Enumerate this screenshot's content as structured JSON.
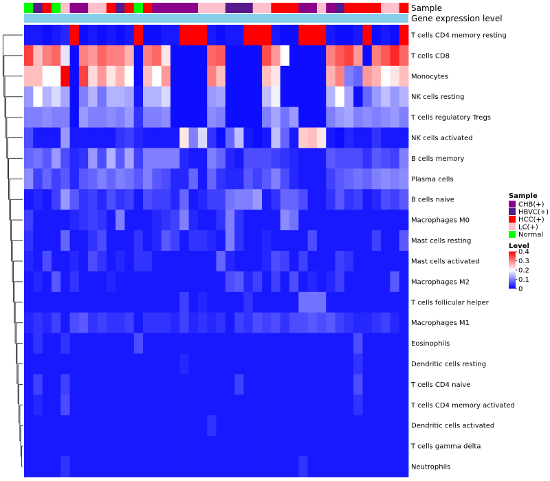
{
  "chart_data": {
    "type": "heatmap",
    "title": "",
    "annotation_rows": [
      "Sample",
      "Gene expression level"
    ],
    "sample_colors": {
      "CHB(+)": "#8b008b",
      "HBVC(+)": "#551a8b",
      "HCC(+)": "#ff0000",
      "LC(+)": "#ffc0cb",
      "Normal": "#00ff00"
    },
    "gene_level_color": "#87ceeb",
    "sample_groups": [
      "Normal",
      "HBVC(+)",
      "HCC(+)",
      "Normal",
      "LC(+)",
      "CHB(+)",
      "CHB(+)",
      "LC(+)",
      "LC(+)",
      "HCC(+)",
      "HBVC(+)",
      "HCC(+)",
      "Normal",
      "HCC(+)",
      "CHB(+)",
      "CHB(+)",
      "CHB(+)",
      "CHB(+)",
      "CHB(+)",
      "LC(+)",
      "LC(+)",
      "LC(+)",
      "HBVC(+)",
      "HBVC(+)",
      "HBVC(+)",
      "LC(+)",
      "LC(+)",
      "HCC(+)",
      "HCC(+)",
      "HCC(+)",
      "CHB(+)",
      "CHB(+)",
      "LC(+)",
      "CHB(+)",
      "HBVC(+)",
      "HCC(+)",
      "HCC(+)",
      "HCC(+)",
      "HCC(+)",
      "LC(+)",
      "LC(+)",
      "HCC(+)"
    ],
    "rows": [
      "T cells CD4 memory resting",
      "T cells CD8",
      "Monocytes",
      "NK cells resting",
      "T cells regulatory  Tregs",
      "NK cells activated",
      "B cells memory",
      "Plasma cells",
      "B cells naive",
      "Macrophages M0",
      "Mast cells resting",
      "Mast cells activated",
      "Macrophages M2",
      "T cells follicular helper",
      "Macrophages M1",
      "Eosinophils",
      "Dendritic cells resting",
      "T cells CD4 naive",
      "T cells CD4 memory activated",
      "Dendritic cells activated",
      "T cells gamma delta",
      "Neutrophils"
    ],
    "values": [
      [
        0.02,
        0.02,
        0.01,
        0.02,
        0.03,
        0.4,
        0.01,
        0.02,
        0.01,
        0.02,
        0.01,
        0.02,
        0.4,
        0.01,
        0.01,
        0.02,
        0.02,
        0.4,
        0.4,
        0.4,
        0.02,
        0.01,
        0.02,
        0.02,
        0.4,
        0.4,
        0.4,
        0.02,
        0.01,
        0.01,
        0.4,
        0.4,
        0.4,
        0.02,
        0.01,
        0.01,
        0.02,
        0.4,
        0.01,
        0.02,
        0.01,
        0.4
      ],
      [
        0.35,
        0.25,
        0.3,
        0.32,
        0.18,
        0.01,
        0.3,
        0.28,
        0.32,
        0.3,
        0.3,
        0.26,
        0.01,
        0.3,
        0.32,
        0.22,
        0.01,
        0.01,
        0.01,
        0.01,
        0.32,
        0.33,
        0.01,
        0.01,
        0.01,
        0.01,
        0.34,
        0.28,
        0.2,
        0.01,
        0.01,
        0.01,
        0.01,
        0.3,
        0.33,
        0.35,
        0.28,
        0.01,
        0.3,
        0.33,
        0.37,
        0.32
      ],
      [
        0.25,
        0.25,
        0.2,
        0.2,
        0.4,
        0.01,
        0.35,
        0.23,
        0.28,
        0.22,
        0.26,
        0.2,
        0.01,
        0.25,
        0.2,
        0.28,
        0.01,
        0.01,
        0.01,
        0.01,
        0.3,
        0.25,
        0.01,
        0.01,
        0.01,
        0.01,
        0.25,
        0.22,
        0.01,
        0.01,
        0.01,
        0.01,
        0.01,
        0.26,
        0.3,
        0.1,
        0.08,
        0.28,
        0.26,
        0.2,
        0.22,
        0.25
      ],
      [
        0.12,
        0.2,
        0.14,
        0.17,
        0.13,
        0.01,
        0.1,
        0.14,
        0.09,
        0.14,
        0.14,
        0.13,
        0.02,
        0.14,
        0.14,
        0.17,
        0.01,
        0.01,
        0.01,
        0.01,
        0.12,
        0.13,
        0.01,
        0.01,
        0.01,
        0.01,
        0.15,
        0.19,
        0.01,
        0.01,
        0.01,
        0.01,
        0.01,
        0.14,
        0.2,
        0.13,
        0.01,
        0.08,
        0.12,
        0.15,
        0.12,
        0.14
      ],
      [
        0.1,
        0.1,
        0.11,
        0.1,
        0.1,
        0.01,
        0.12,
        0.1,
        0.1,
        0.11,
        0.1,
        0.12,
        0.04,
        0.1,
        0.1,
        0.11,
        0.01,
        0.01,
        0.01,
        0.01,
        0.11,
        0.1,
        0.01,
        0.01,
        0.01,
        0.01,
        0.1,
        0.13,
        0.09,
        0.12,
        0.01,
        0.01,
        0.01,
        0.1,
        0.12,
        0.13,
        0.1,
        0.11,
        0.1,
        0.11,
        0.12,
        0.1
      ],
      [
        0.06,
        0.02,
        0.02,
        0.02,
        0.12,
        0.02,
        0.02,
        0.02,
        0.02,
        0.02,
        0.04,
        0.05,
        0.03,
        0.02,
        0.02,
        0.02,
        0.02,
        0.22,
        0.1,
        0.17,
        0.04,
        0.01,
        0.08,
        0.15,
        0.02,
        0.01,
        0.02,
        0.15,
        0.08,
        0.02,
        0.24,
        0.25,
        0.22,
        0.02,
        0.01,
        0.03,
        0.02,
        0.02,
        0.04,
        0.02,
        0.02,
        0.02
      ],
      [
        0.08,
        0.09,
        0.07,
        0.12,
        0.06,
        0.03,
        0.04,
        0.12,
        0.06,
        0.14,
        0.07,
        0.13,
        0.05,
        0.1,
        0.1,
        0.1,
        0.1,
        0.03,
        0.02,
        0.02,
        0.1,
        0.08,
        0.03,
        0.02,
        0.06,
        0.06,
        0.06,
        0.05,
        0.04,
        0.03,
        0.02,
        0.02,
        0.02,
        0.07,
        0.06,
        0.06,
        0.06,
        0.04,
        0.07,
        0.06,
        0.05,
        0.1
      ],
      [
        0.11,
        0.05,
        0.08,
        0.05,
        0.07,
        0.03,
        0.07,
        0.08,
        0.1,
        0.08,
        0.1,
        0.09,
        0.07,
        0.1,
        0.07,
        0.06,
        0.03,
        0.03,
        0.08,
        0.02,
        0.08,
        0.04,
        0.03,
        0.03,
        0.07,
        0.05,
        0.07,
        0.1,
        0.06,
        0.03,
        0.02,
        0.02,
        0.02,
        0.05,
        0.07,
        0.08,
        0.09,
        0.08,
        0.1,
        0.11,
        0.1,
        0.11
      ],
      [
        0.02,
        0.03,
        0.02,
        0.05,
        0.12,
        0.07,
        0.04,
        0.05,
        0.03,
        0.06,
        0.04,
        0.05,
        0.02,
        0.06,
        0.05,
        0.05,
        0.03,
        0.08,
        0.02,
        0.03,
        0.05,
        0.05,
        0.09,
        0.1,
        0.1,
        0.12,
        0.02,
        0.04,
        0.08,
        0.08,
        0.06,
        0.02,
        0.02,
        0.04,
        0.07,
        0.04,
        0.05,
        0.02,
        0.03,
        0.06,
        0.05,
        0.07
      ],
      [
        0.05,
        0.02,
        0.02,
        0.02,
        0.02,
        0.03,
        0.04,
        0.05,
        0.04,
        0.02,
        0.1,
        0.02,
        0.02,
        0.02,
        0.03,
        0.04,
        0.05,
        0.1,
        0.03,
        0.02,
        0.02,
        0.04,
        0.1,
        0.04,
        0.02,
        0.02,
        0.02,
        0.02,
        0.11,
        0.09,
        0.02,
        0.02,
        0.02,
        0.02,
        0.02,
        0.02,
        0.02,
        0.02,
        0.02,
        0.02,
        0.02,
        0.02
      ],
      [
        0.04,
        0.02,
        0.02,
        0.02,
        0.08,
        0.02,
        0.02,
        0.04,
        0.06,
        0.02,
        0.02,
        0.02,
        0.04,
        0.02,
        0.03,
        0.07,
        0.05,
        0.02,
        0.04,
        0.04,
        0.03,
        0.02,
        0.1,
        0.04,
        0.02,
        0.02,
        0.03,
        0.02,
        0.02,
        0.02,
        0.02,
        0.06,
        0.02,
        0.02,
        0.02,
        0.02,
        0.02,
        0.02,
        0.05,
        0.02,
        0.02,
        0.07
      ],
      [
        0.03,
        0.02,
        0.06,
        0.02,
        0.02,
        0.03,
        0.02,
        0.06,
        0.04,
        0.02,
        0.03,
        0.02,
        0.04,
        0.04,
        0.02,
        0.02,
        0.02,
        0.02,
        0.02,
        0.02,
        0.02,
        0.08,
        0.03,
        0.02,
        0.02,
        0.02,
        0.03,
        0.06,
        0.05,
        0.02,
        0.05,
        0.02,
        0.02,
        0.02,
        0.05,
        0.04,
        0.02,
        0.02,
        0.02,
        0.02,
        0.02,
        0.02
      ],
      [
        0.02,
        0.03,
        0.02,
        0.07,
        0.02,
        0.04,
        0.02,
        0.02,
        0.02,
        0.03,
        0.02,
        0.02,
        0.02,
        0.02,
        0.02,
        0.02,
        0.02,
        0.02,
        0.02,
        0.02,
        0.02,
        0.02,
        0.06,
        0.07,
        0.03,
        0.05,
        0.02,
        0.05,
        0.02,
        0.06,
        0.02,
        0.03,
        0.02,
        0.03,
        0.05,
        0.02,
        0.02,
        0.02,
        0.02,
        0.02,
        0.07,
        0.02
      ],
      [
        0.02,
        0.02,
        0.02,
        0.02,
        0.02,
        0.02,
        0.02,
        0.02,
        0.02,
        0.02,
        0.02,
        0.02,
        0.02,
        0.02,
        0.02,
        0.02,
        0.02,
        0.05,
        0.02,
        0.03,
        0.02,
        0.02,
        0.02,
        0.02,
        0.04,
        0.02,
        0.02,
        0.02,
        0.02,
        0.02,
        0.09,
        0.09,
        0.09,
        0.02,
        0.02,
        0.02,
        0.02,
        0.02,
        0.02,
        0.02,
        0.02,
        0.02
      ],
      [
        0.03,
        0.04,
        0.03,
        0.05,
        0.02,
        0.06,
        0.07,
        0.04,
        0.05,
        0.04,
        0.04,
        0.05,
        0.02,
        0.04,
        0.04,
        0.04,
        0.03,
        0.05,
        0.03,
        0.04,
        0.03,
        0.04,
        0.02,
        0.05,
        0.04,
        0.06,
        0.05,
        0.06,
        0.04,
        0.06,
        0.06,
        0.07,
        0.06,
        0.07,
        0.05,
        0.04,
        0.03,
        0.03,
        0.04,
        0.05,
        0.03,
        0.02
      ],
      [
        0.02,
        0.04,
        0.02,
        0.02,
        0.04,
        0.02,
        0.02,
        0.02,
        0.02,
        0.02,
        0.02,
        0.02,
        0.06,
        0.02,
        0.02,
        0.02,
        0.02,
        0.02,
        0.02,
        0.02,
        0.02,
        0.02,
        0.02,
        0.02,
        0.02,
        0.02,
        0.02,
        0.02,
        0.02,
        0.02,
        0.02,
        0.02,
        0.02,
        0.02,
        0.02,
        0.02,
        0.06,
        0.02,
        0.02,
        0.02,
        0.02,
        0.02
      ],
      [
        0.02,
        0.02,
        0.02,
        0.02,
        0.02,
        0.02,
        0.02,
        0.02,
        0.02,
        0.02,
        0.02,
        0.02,
        0.02,
        0.02,
        0.02,
        0.02,
        0.02,
        0.03,
        0.02,
        0.02,
        0.02,
        0.02,
        0.02,
        0.02,
        0.02,
        0.02,
        0.02,
        0.02,
        0.02,
        0.02,
        0.02,
        0.02,
        0.02,
        0.02,
        0.02,
        0.02,
        0.04,
        0.02,
        0.02,
        0.02,
        0.02,
        0.02
      ],
      [
        0.02,
        0.05,
        0.02,
        0.02,
        0.05,
        0.02,
        0.02,
        0.02,
        0.02,
        0.02,
        0.02,
        0.02,
        0.02,
        0.02,
        0.02,
        0.02,
        0.02,
        0.02,
        0.02,
        0.02,
        0.02,
        0.02,
        0.02,
        0.05,
        0.02,
        0.02,
        0.02,
        0.02,
        0.02,
        0.02,
        0.02,
        0.02,
        0.02,
        0.02,
        0.02,
        0.02,
        0.06,
        0.02,
        0.02,
        0.02,
        0.02,
        0.02
      ],
      [
        0.02,
        0.03,
        0.02,
        0.02,
        0.06,
        0.02,
        0.02,
        0.02,
        0.02,
        0.02,
        0.02,
        0.02,
        0.02,
        0.02,
        0.02,
        0.02,
        0.02,
        0.02,
        0.02,
        0.02,
        0.02,
        0.02,
        0.02,
        0.02,
        0.02,
        0.02,
        0.02,
        0.02,
        0.02,
        0.02,
        0.02,
        0.02,
        0.02,
        0.02,
        0.02,
        0.02,
        0.04,
        0.02,
        0.02,
        0.02,
        0.02,
        0.02
      ],
      [
        0.02,
        0.02,
        0.02,
        0.02,
        0.02,
        0.02,
        0.02,
        0.02,
        0.02,
        0.02,
        0.02,
        0.02,
        0.02,
        0.02,
        0.02,
        0.02,
        0.02,
        0.02,
        0.02,
        0.02,
        0.04,
        0.02,
        0.02,
        0.02,
        0.02,
        0.02,
        0.02,
        0.02,
        0.02,
        0.02,
        0.02,
        0.02,
        0.02,
        0.02,
        0.02,
        0.02,
        0.02,
        0.02,
        0.02,
        0.02,
        0.02,
        0.02
      ],
      [
        0.02,
        0.02,
        0.02,
        0.02,
        0.02,
        0.02,
        0.02,
        0.02,
        0.02,
        0.02,
        0.02,
        0.02,
        0.02,
        0.02,
        0.02,
        0.02,
        0.02,
        0.02,
        0.02,
        0.02,
        0.02,
        0.02,
        0.02,
        0.02,
        0.02,
        0.02,
        0.02,
        0.02,
        0.02,
        0.02,
        0.02,
        0.02,
        0.02,
        0.02,
        0.02,
        0.02,
        0.02,
        0.02,
        0.02,
        0.02,
        0.02,
        0.02
      ],
      [
        0.02,
        0.02,
        0.02,
        0.02,
        0.04,
        0.02,
        0.02,
        0.02,
        0.02,
        0.02,
        0.02,
        0.02,
        0.02,
        0.02,
        0.02,
        0.02,
        0.02,
        0.02,
        0.02,
        0.02,
        0.02,
        0.02,
        0.02,
        0.02,
        0.02,
        0.02,
        0.02,
        0.02,
        0.02,
        0.02,
        0.04,
        0.02,
        0.02,
        0.02,
        0.02,
        0.02,
        0.02,
        0.02,
        0.02,
        0.02,
        0.02,
        0.02
      ]
    ],
    "color_scale": {
      "min": 0,
      "max": 0.4,
      "low": "#0000ff",
      "mid": "#ffffff",
      "high": "#ff0000"
    },
    "legend": {
      "sample_title": "Sample",
      "sample_entries": [
        "CHB(+)",
        "HBVC(+)",
        "HCC(+)",
        "LC(+)",
        "Normal"
      ],
      "level_title": "Level",
      "level_ticks": [
        "0.4",
        "0.3",
        "0.2",
        "0.1",
        "0"
      ],
      "placement": "right"
    },
    "dendrogram": "rows"
  }
}
